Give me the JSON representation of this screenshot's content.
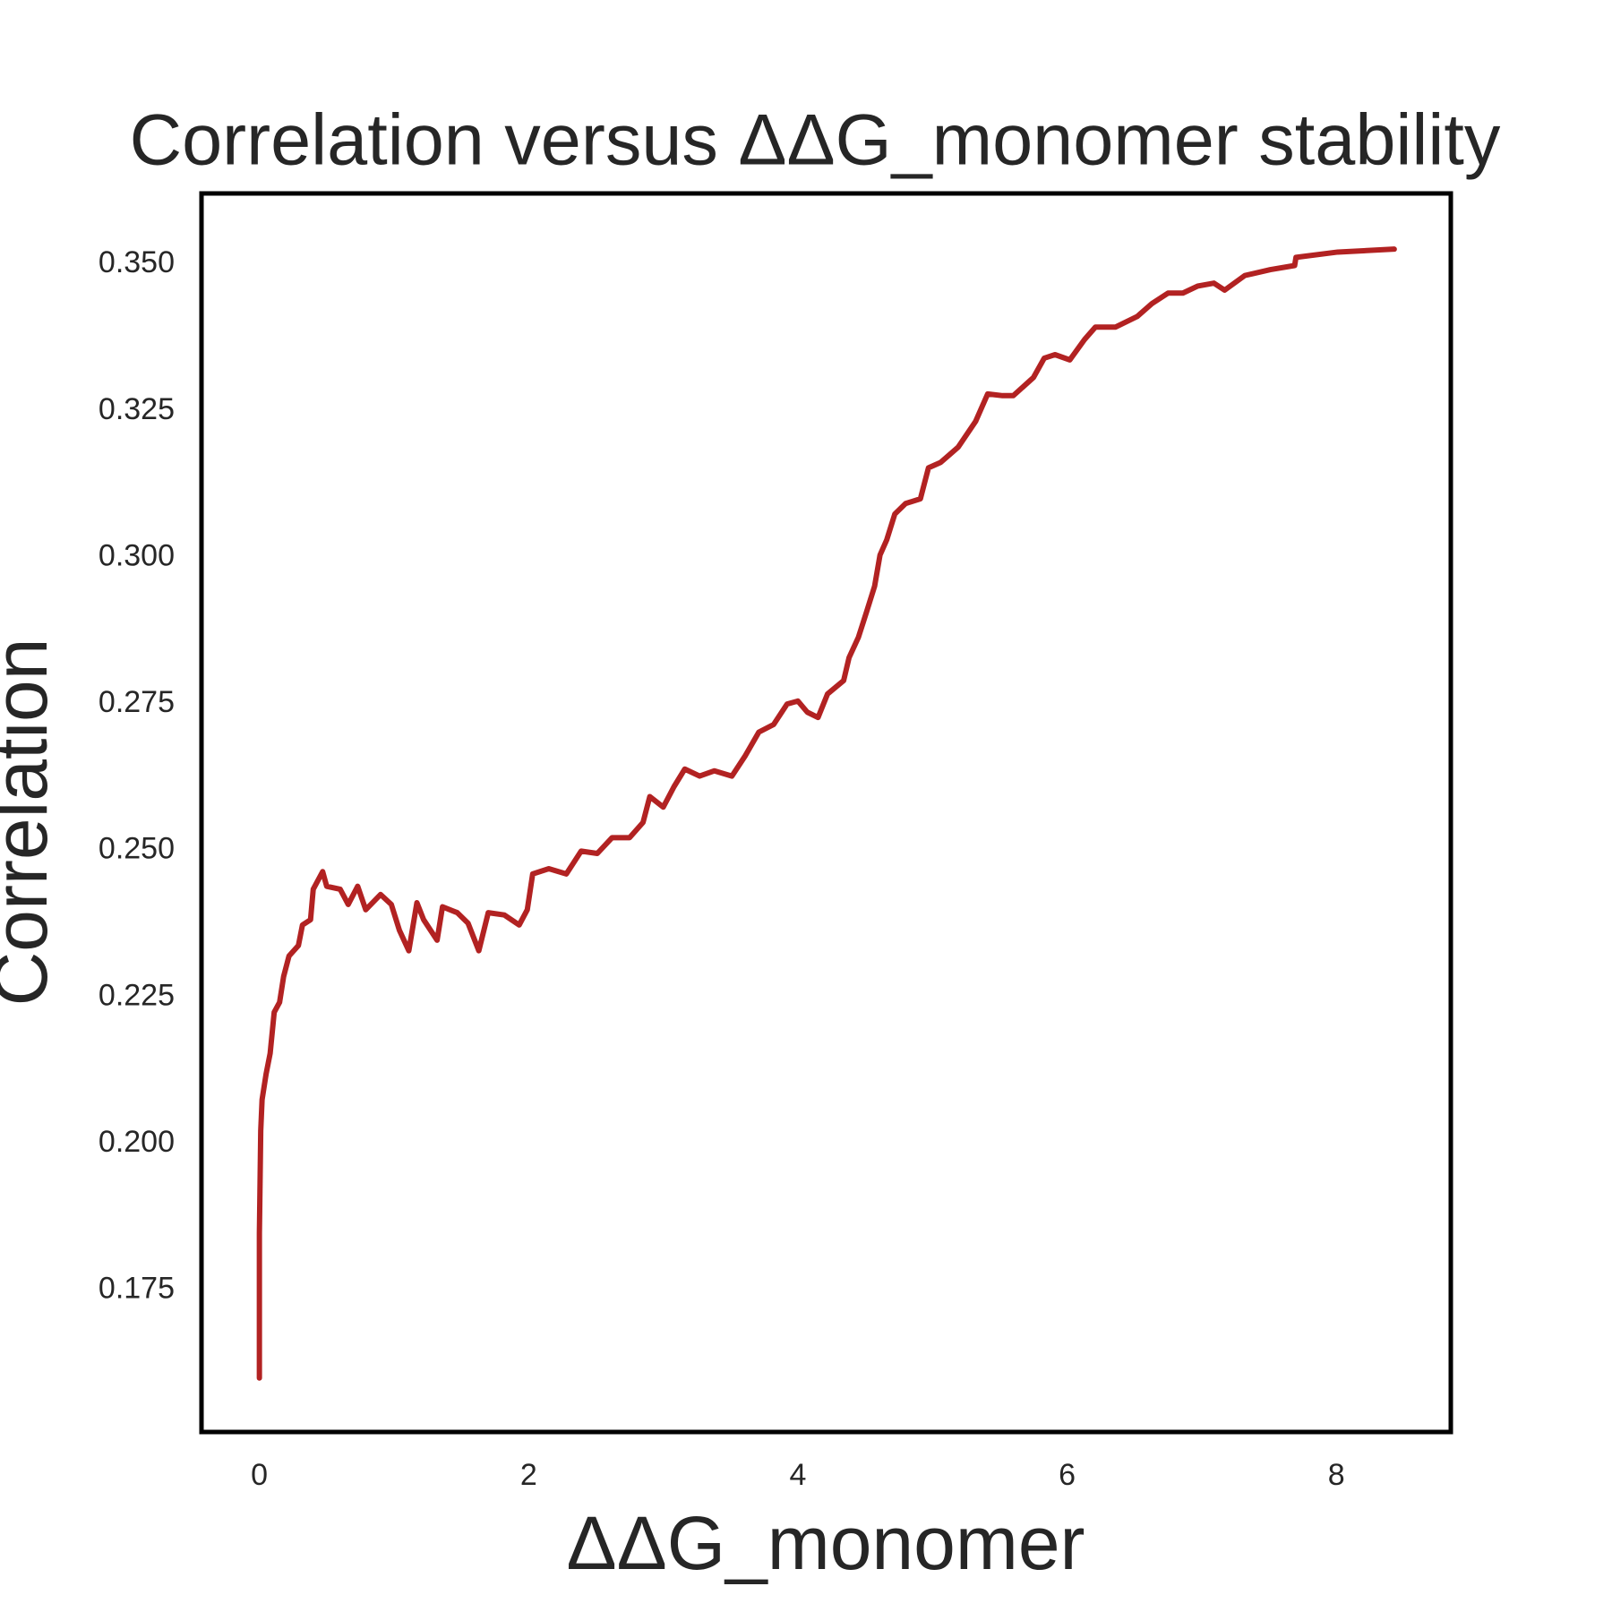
{
  "chart_data": {
    "type": "line",
    "title": "Correlation versus ΔΔG_monomer stability",
    "x_label": "ΔΔG_monomer",
    "y_label": "Correlation",
    "grid": false,
    "xlim": [
      -0.43,
      8.85
    ],
    "ylim": [
      0.1508,
      0.3621
    ],
    "xticks": [
      0,
      2,
      4,
      6,
      8
    ],
    "yticks": [
      0.175,
      {
        "value": 0.2,
        "label": "0.200"
      },
      0.225,
      {
        "value": 0.25,
        "label": "0.250"
      },
      0.275,
      {
        "value": 0.3,
        "label": "0.300"
      },
      0.325,
      {
        "value": 0.35,
        "label": "0.350"
      }
    ],
    "x": [
      0,
      0,
      0.01,
      0.02,
      0.05,
      0.08,
      0.11,
      0.15,
      0.18,
      0.22,
      0.29,
      0.32,
      0.38,
      0.4,
      0.47,
      0.5,
      0.6,
      0.66,
      0.73,
      0.79,
      0.9,
      0.98,
      1.04,
      1.11,
      1.17,
      1.22,
      1.32,
      1.36,
      1.47,
      1.55,
      1.63,
      1.7,
      1.82,
      1.93,
      1.99,
      2.03,
      2.15,
      2.28,
      2.39,
      2.51,
      2.62,
      2.75,
      2.85,
      2.9,
      3.0,
      3.08,
      3.16,
      3.27,
      3.38,
      3.51,
      3.61,
      3.71,
      3.82,
      3.92,
      4.0,
      4.07,
      4.15,
      4.22,
      4.34,
      4.38,
      4.45,
      4.51,
      4.57,
      4.61,
      4.66,
      4.72,
      4.8,
      4.91,
      4.97,
      5.06,
      5.19,
      5.32,
      5.41,
      5.52,
      5.6,
      5.75,
      5.83,
      5.91,
      6.02,
      6.13,
      6.21,
      6.36,
      6.52,
      6.63,
      6.75,
      6.86,
      6.97,
      7.09,
      7.17,
      7.32,
      7.51,
      7.69,
      7.7,
      8.01,
      8.43
    ],
    "series": [
      {
        "color": "#b22222",
        "values": [
          0.16,
          0.1847,
          0.2022,
          0.2075,
          0.2119,
          0.2154,
          0.2224,
          0.2241,
          0.2285,
          0.232,
          0.2338,
          0.2373,
          0.2382,
          0.2434,
          0.2464,
          0.2439,
          0.2434,
          0.2408,
          0.2439,
          0.2399,
          0.2425,
          0.2408,
          0.2364,
          0.2329,
          0.2411,
          0.2382,
          0.2347,
          0.2404,
          0.2394,
          0.2376,
          0.2329,
          0.2394,
          0.239,
          0.2373,
          0.2399,
          0.246,
          0.2469,
          0.246,
          0.2499,
          0.2495,
          0.2522,
          0.2522,
          0.2548,
          0.2592,
          0.2574,
          0.2609,
          0.2639,
          0.2627,
          0.2636,
          0.2627,
          0.2662,
          0.2702,
          0.2715,
          0.275,
          0.2755,
          0.2736,
          0.2727,
          0.2767,
          0.279,
          0.2829,
          0.2864,
          0.2907,
          0.2951,
          0.3004,
          0.303,
          0.3074,
          0.3092,
          0.31,
          0.3153,
          0.3162,
          0.3188,
          0.3232,
          0.3279,
          0.3276,
          0.3276,
          0.3307,
          0.334,
          0.3346,
          0.3337,
          0.3372,
          0.3393,
          0.3393,
          0.3411,
          0.3433,
          0.3451,
          0.3451,
          0.3463,
          0.3468,
          0.3456,
          0.3481,
          0.3491,
          0.3498,
          0.3512,
          0.3521,
          0.3526
        ]
      }
    ]
  }
}
